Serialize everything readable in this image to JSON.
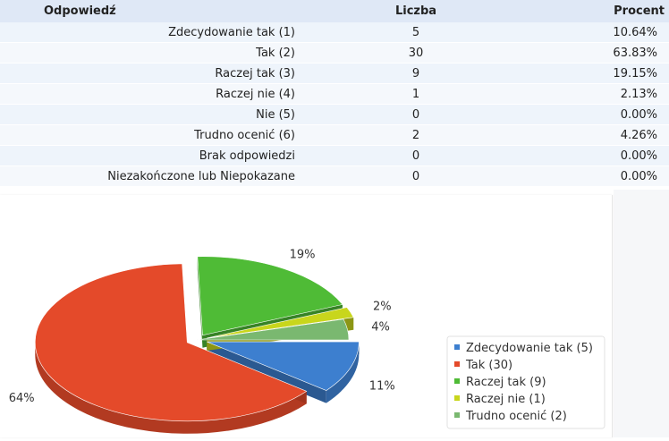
{
  "table": {
    "headers": [
      "Odpowiedź",
      "Liczba",
      "Procent"
    ],
    "rows": [
      {
        "answer": "Zdecydowanie tak (1)",
        "count": "5",
        "percent": "10.64%"
      },
      {
        "answer": "Tak (2)",
        "count": "30",
        "percent": "63.83%"
      },
      {
        "answer": "Raczej tak (3)",
        "count": "9",
        "percent": "19.15%"
      },
      {
        "answer": "Raczej nie (4)",
        "count": "1",
        "percent": "2.13%"
      },
      {
        "answer": "Nie (5)",
        "count": "0",
        "percent": "0.00%"
      },
      {
        "answer": "Trudno ocenić (6)",
        "count": "2",
        "percent": "4.26%"
      },
      {
        "answer": "Brak odpowiedzi",
        "count": "0",
        "percent": "0.00%"
      },
      {
        "answer": "Niezakończone lub Niepokazane",
        "count": "0",
        "percent": "0.00%"
      }
    ]
  },
  "chart_data": {
    "type": "pie",
    "legend_position": "bottom-right",
    "slices": [
      {
        "name": "Zdecydowanie tak (5)",
        "value": 5,
        "label": "11%",
        "color": "#3d7fcf",
        "explode": true
      },
      {
        "name": "Tak (30)",
        "value": 30,
        "label": "64%",
        "color": "#e44a2a",
        "explode": true
      },
      {
        "name": "Raczej tak (9)",
        "value": 9,
        "label": "19%",
        "color": "#4fbb36",
        "explode": true
      },
      {
        "name": "Raczej nie (1)",
        "value": 1,
        "label": "2%",
        "color": "#c8d61c",
        "explode": true
      },
      {
        "name": "Trudno ocenić (2)",
        "value": 2,
        "label": "4%",
        "color": "#7ab870",
        "explode": false
      }
    ]
  }
}
